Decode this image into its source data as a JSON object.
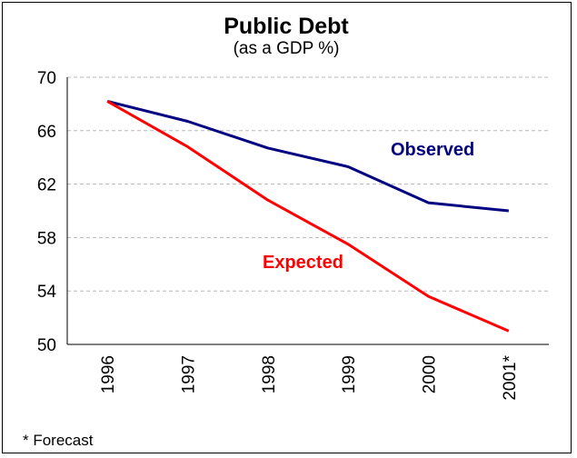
{
  "chart_data": {
    "type": "line",
    "title": "Public Debt",
    "subtitle": "(as a GDP %)",
    "xlabel": "",
    "ylabel": "",
    "categories": [
      "1996",
      "1997",
      "1998",
      "1999",
      "2000",
      "2001*"
    ],
    "ylim": [
      50,
      70
    ],
    "yticks": [
      50,
      54,
      58,
      62,
      66,
      70
    ],
    "grid": "horizontal-dashed",
    "series": [
      {
        "name": "Observed",
        "color": "#000080",
        "values": [
          68.2,
          66.7,
          64.7,
          63.3,
          60.6,
          60.0
        ]
      },
      {
        "name": "Expected",
        "color": "#ff0000",
        "values": [
          68.2,
          64.8,
          60.8,
          57.5,
          53.6,
          51.0
        ]
      }
    ],
    "footnote": "* Forecast"
  }
}
